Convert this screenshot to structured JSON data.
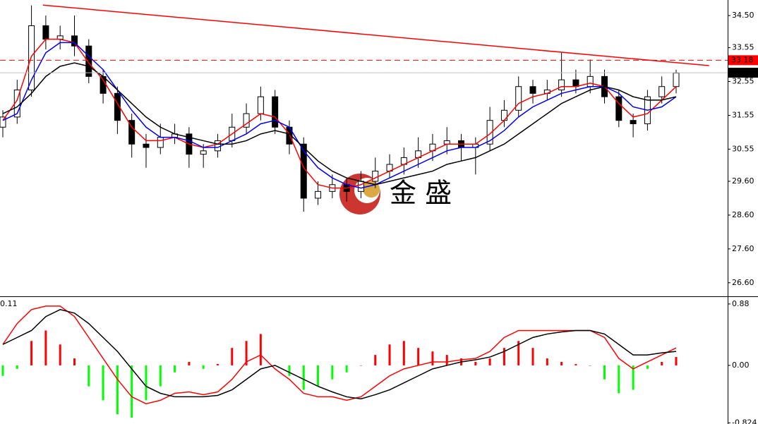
{
  "chart_data": [
    {
      "type": "candlestick",
      "ylim": [
        26.22,
        34.96
      ],
      "yticks": [
        {
          "value": 34.5,
          "label": "34.50"
        },
        33.55,
        32.55,
        31.55,
        30.55,
        {
          "value": 29.6,
          "label": "29.60"
        },
        {
          "value": 28.6,
          "label": "28.60"
        },
        {
          "value": 27.6,
          "label": "27.60"
        },
        {
          "value": 26.6,
          "label": "26.60"
        }
      ],
      "open": [
        31.2,
        31.5,
        32.3,
        34.2,
        33.8,
        33.9,
        33.6,
        32.7,
        32.2,
        31.4,
        30.7,
        30.6,
        30.9,
        31.0,
        30.4,
        30.5,
        30.8,
        31.2,
        31.6,
        32.1,
        31.2,
        30.7,
        29.1,
        29.3,
        29.5,
        29.3,
        29.6,
        29.9,
        30.1,
        30.3,
        30.5,
        30.7,
        30.8,
        30.6,
        30.7,
        31.4,
        31.7,
        32.4,
        32.2,
        32.3,
        32.6,
        32.4,
        32.7,
        32.1,
        31.4,
        31.3,
        32.1,
        32.4
      ],
      "high": [
        31.7,
        32.6,
        34.8,
        34.5,
        34.2,
        34.5,
        33.8,
        32.9,
        32.4,
        31.6,
        31.0,
        31.3,
        31.3,
        31.2,
        30.7,
        31.0,
        31.6,
        31.9,
        32.4,
        32.3,
        31.4,
        30.9,
        29.6,
        29.8,
        29.7,
        29.9,
        30.3,
        30.4,
        30.6,
        30.9,
        31.0,
        31.2,
        31.0,
        30.9,
        31.8,
        32.0,
        32.7,
        32.6,
        32.6,
        33.4,
        32.9,
        33.2,
        32.9,
        32.3,
        31.6,
        32.3,
        32.7,
        32.9
      ],
      "low": [
        30.9,
        31.3,
        32.1,
        33.5,
        33.5,
        33.3,
        32.5,
        31.9,
        31.0,
        30.3,
        30.0,
        30.4,
        30.7,
        30.0,
        30.0,
        30.3,
        30.6,
        31.0,
        31.4,
        31.0,
        30.4,
        28.7,
        28.9,
        29.1,
        29.0,
        29.1,
        29.4,
        29.7,
        29.8,
        30.0,
        30.2,
        30.4,
        30.2,
        29.8,
        30.5,
        31.2,
        31.5,
        31.9,
        32.0,
        32.1,
        32.2,
        32.2,
        31.9,
        31.2,
        30.9,
        31.1,
        31.9,
        32.2
      ],
      "close": [
        31.5,
        32.3,
        34.2,
        33.8,
        33.9,
        33.6,
        32.7,
        32.2,
        31.4,
        30.7,
        30.6,
        30.9,
        31.0,
        30.4,
        30.5,
        30.8,
        31.2,
        31.6,
        32.1,
        31.2,
        30.7,
        29.1,
        29.3,
        29.5,
        29.3,
        29.6,
        29.9,
        30.1,
        30.3,
        30.5,
        30.7,
        30.8,
        30.6,
        30.7,
        31.4,
        31.7,
        32.4,
        32.2,
        32.3,
        32.6,
        32.4,
        32.7,
        32.1,
        31.4,
        31.3,
        32.1,
        32.4,
        32.8
      ],
      "series": [
        {
          "color": "#ff0000",
          "values": [
            31.4,
            32.0,
            33.3,
            33.8,
            33.8,
            33.7,
            33.1,
            32.6,
            31.9,
            31.2,
            30.8,
            30.8,
            30.9,
            30.7,
            30.6,
            30.7,
            31.0,
            31.3,
            31.6,
            31.5,
            31.0,
            30.0,
            29.5,
            29.4,
            29.4,
            29.5,
            29.7,
            29.9,
            30.1,
            30.3,
            30.5,
            30.7,
            30.7,
            30.7,
            31.0,
            31.4,
            31.9,
            32.1,
            32.2,
            32.4,
            32.4,
            32.5,
            32.4,
            31.9,
            31.5,
            31.6,
            32.0,
            32.4
          ]
        },
        {
          "color": "#0000ff",
          "values": [
            31.4,
            31.6,
            32.6,
            33.4,
            33.7,
            33.7,
            33.3,
            32.9,
            32.3,
            31.7,
            31.2,
            30.9,
            30.9,
            30.8,
            30.6,
            30.6,
            30.8,
            31.0,
            31.3,
            31.4,
            31.2,
            30.5,
            30.0,
            29.7,
            29.5,
            29.4,
            29.5,
            29.7,
            29.9,
            30.1,
            30.3,
            30.5,
            30.6,
            30.6,
            30.8,
            31.1,
            31.5,
            31.8,
            32.0,
            32.2,
            32.3,
            32.4,
            32.4,
            32.2,
            31.8,
            31.7,
            31.8,
            32.1
          ]
        },
        {
          "color": "#000000",
          "values": [
            31.6,
            31.8,
            32.2,
            32.7,
            33.0,
            33.1,
            33.0,
            32.7,
            32.3,
            31.9,
            31.5,
            31.2,
            31.0,
            30.9,
            30.8,
            30.7,
            30.7,
            30.8,
            31.0,
            31.1,
            31.0,
            30.6,
            30.2,
            29.9,
            29.7,
            29.6,
            29.5,
            29.6,
            29.7,
            29.8,
            29.9,
            30.1,
            30.2,
            30.3,
            30.5,
            30.7,
            31.0,
            31.3,
            31.6,
            31.9,
            32.1,
            32.3,
            32.4,
            32.3,
            32.1,
            32.0,
            32.0,
            32.1
          ]
        }
      ],
      "trendline": {
        "color": "#ff0000",
        "x": [
          2.8,
          49.3
        ],
        "y": [
          34.81,
          33.02
        ]
      },
      "price_lines": [
        {
          "value": 33.18,
          "color": "#ff0000",
          "dashed": true
        },
        {
          "value": 32.81,
          "color": "#c0c0c0",
          "dashed": false
        }
      ],
      "watermark": "金 盛"
    },
    {
      "type": "macd",
      "ylim": [
        -0.84,
        0.97
      ],
      "yticks": [
        0.88,
        {
          "value": 0,
          "label": "0.00"
        },
        -0.824
      ],
      "indicator_label": "0.11",
      "histogram": {
        "up_color": "#ff0000",
        "down_color": "#00ff00",
        "values": [
          -0.15,
          -0.05,
          0.35,
          0.5,
          0.3,
          0.1,
          -0.3,
          -0.5,
          -0.7,
          -0.75,
          -0.5,
          -0.3,
          -0.1,
          0.05,
          -0.05,
          0.02,
          0.25,
          0.35,
          0.45,
          0.0,
          -0.15,
          -0.35,
          -0.3,
          -0.2,
          -0.1,
          0.0,
          0.15,
          0.3,
          0.35,
          0.25,
          0.2,
          0.15,
          0.1,
          0.05,
          0.1,
          0.25,
          0.35,
          0.25,
          0.1,
          0.05,
          0.02,
          0.0,
          -0.2,
          -0.4,
          -0.35,
          -0.05,
          0.05,
          0.12
        ]
      },
      "series": [
        {
          "color": "#ff0000",
          "values": [
            0.3,
            0.6,
            0.8,
            0.85,
            0.85,
            0.7,
            0.4,
            0.1,
            -0.2,
            -0.45,
            -0.55,
            -0.5,
            -0.4,
            -0.38,
            -0.42,
            -0.38,
            -0.2,
            0.05,
            0.15,
            -0.05,
            -0.2,
            -0.4,
            -0.45,
            -0.45,
            -0.5,
            -0.45,
            -0.3,
            -0.15,
            -0.05,
            0.0,
            0.05,
            0.05,
            0.08,
            0.1,
            0.2,
            0.4,
            0.5,
            0.5,
            0.5,
            0.5,
            0.5,
            0.5,
            0.4,
            0.1,
            -0.05,
            0.05,
            0.15,
            0.25
          ]
        },
        {
          "color": "#000000",
          "values": [
            0.3,
            0.4,
            0.5,
            0.7,
            0.8,
            0.75,
            0.6,
            0.4,
            0.2,
            -0.05,
            -0.3,
            -0.4,
            -0.45,
            -0.45,
            -0.45,
            -0.43,
            -0.35,
            -0.2,
            -0.05,
            0.0,
            -0.1,
            -0.2,
            -0.3,
            -0.38,
            -0.45,
            -0.48,
            -0.42,
            -0.35,
            -0.25,
            -0.15,
            -0.05,
            0.0,
            0.05,
            0.08,
            0.12,
            0.2,
            0.3,
            0.4,
            0.45,
            0.48,
            0.5,
            0.5,
            0.45,
            0.3,
            0.15,
            0.15,
            0.18,
            0.2
          ]
        }
      ]
    }
  ]
}
